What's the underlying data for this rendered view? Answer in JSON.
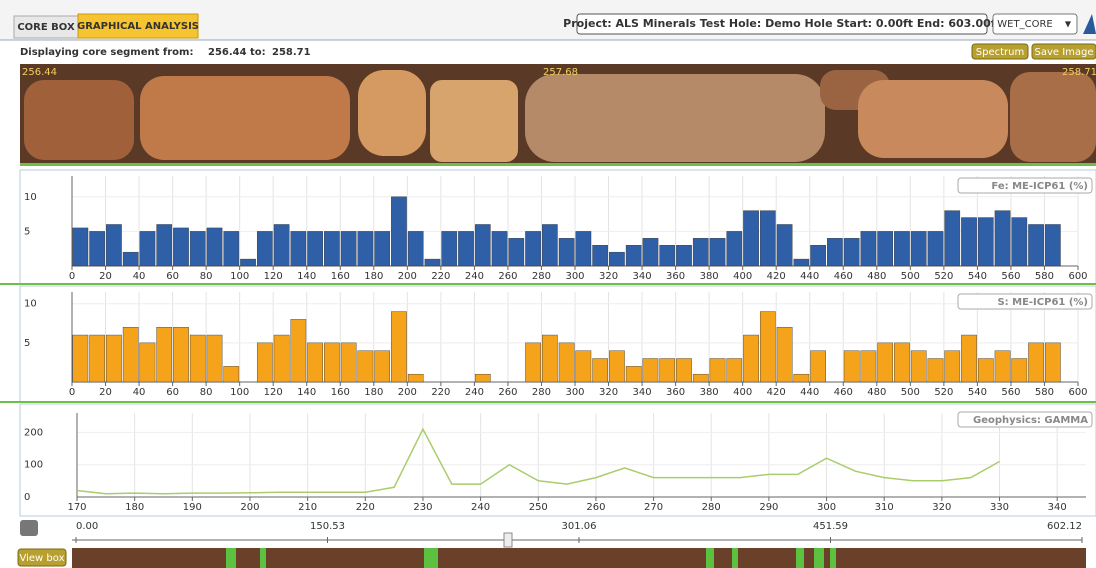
{
  "header": {
    "tabs": [
      "CORE BOX",
      "GRAPHICAL ANALYSIS"
    ],
    "project": "Project: ALS Minerals Test Hole: Demo Hole Start: 0.00ft End: 603.00ft",
    "dropdown": "WET_CORE"
  },
  "segment": {
    "label": "Displaying core segment from:",
    "from": "256.44",
    "to_label": "to:",
    "to": "258.71",
    "buttons": [
      "Spectrum",
      "Save Image"
    ],
    "core_marks": [
      "256.44",
      "257.68",
      "258.71"
    ]
  },
  "chart_data": [
    {
      "type": "bar",
      "title": "Fe: ME-ICP61 (%)",
      "color": "#2f5fa7",
      "grid": true,
      "x": [
        5,
        15,
        25,
        35,
        45,
        55,
        65,
        75,
        85,
        95,
        105,
        115,
        125,
        135,
        145,
        155,
        165,
        175,
        185,
        195,
        205,
        215,
        225,
        235,
        245,
        255,
        265,
        275,
        285,
        295,
        305,
        315,
        325,
        335,
        345,
        355,
        365,
        375,
        385,
        395,
        405,
        415,
        425,
        435,
        445,
        455,
        465,
        475,
        485,
        495,
        505,
        515,
        525,
        535,
        545,
        555,
        565,
        575,
        585
      ],
      "values": [
        5.5,
        5,
        6,
        2,
        5,
        6,
        5.5,
        5,
        5.5,
        5,
        1,
        5,
        6,
        5,
        5,
        5,
        5,
        5,
        5,
        10,
        5,
        1,
        5,
        5,
        6,
        5,
        4,
        5,
        6,
        4,
        5,
        3,
        2,
        3,
        4,
        3,
        3,
        4,
        4,
        5,
        8,
        8,
        6,
        1,
        3,
        4,
        4,
        5,
        5,
        5,
        5,
        5,
        8,
        7,
        7,
        8,
        7,
        6,
        6
      ],
      "xlim": [
        0,
        600
      ],
      "ylim": [
        0,
        13
      ],
      "xticks": [
        0,
        20,
        40,
        60,
        80,
        100,
        120,
        140,
        160,
        180,
        200,
        220,
        240,
        260,
        280,
        300,
        320,
        340,
        360,
        380,
        400,
        420,
        440,
        460,
        480,
        500,
        520,
        540,
        560,
        580,
        600
      ],
      "yticks": [
        5,
        10
      ]
    },
    {
      "type": "bar",
      "title": "S: ME-ICP61 (%)",
      "color": "#f5a31a",
      "grid": true,
      "x": [
        5,
        15,
        25,
        35,
        45,
        55,
        65,
        75,
        85,
        95,
        105,
        115,
        125,
        135,
        145,
        155,
        165,
        175,
        185,
        195,
        205,
        215,
        225,
        235,
        245,
        255,
        265,
        275,
        285,
        295,
        305,
        315,
        325,
        335,
        345,
        355,
        365,
        375,
        385,
        395,
        405,
        415,
        425,
        435,
        445,
        455,
        465,
        475,
        485,
        495,
        505,
        515,
        525,
        535,
        545,
        555,
        565,
        575,
        585
      ],
      "values": [
        6,
        6,
        6,
        7,
        5,
        7,
        7,
        6,
        6,
        2,
        0,
        5,
        6,
        8,
        5,
        5,
        5,
        4,
        4,
        9,
        1,
        0,
        0,
        0,
        1,
        0,
        0,
        5,
        6,
        5,
        4,
        3,
        4,
        2,
        3,
        3,
        3,
        1,
        3,
        3,
        6,
        9,
        7,
        1,
        4,
        0,
        4,
        4,
        5,
        5,
        4,
        3,
        4,
        6,
        3,
        4,
        3,
        5,
        5
      ],
      "xlim": [
        0,
        600
      ],
      "ylim": [
        0,
        11.5
      ],
      "xticks": [
        0,
        20,
        40,
        60,
        80,
        100,
        120,
        140,
        160,
        180,
        200,
        220,
        240,
        260,
        280,
        300,
        320,
        340,
        360,
        380,
        400,
        420,
        440,
        460,
        480,
        500,
        520,
        540,
        560,
        580,
        600
      ],
      "yticks": [
        5,
        10
      ]
    },
    {
      "type": "line",
      "title": "Geophysics: GAMMA",
      "color": "#a9cd6b",
      "grid": true,
      "x": [
        170,
        175,
        180,
        185,
        190,
        195,
        200,
        205,
        210,
        215,
        220,
        225,
        230,
        235,
        240,
        245,
        250,
        255,
        260,
        265,
        270,
        275,
        280,
        285,
        290,
        295,
        300,
        305,
        310,
        315,
        320,
        325,
        330
      ],
      "values": [
        20,
        10,
        12,
        10,
        12,
        12,
        13,
        15,
        15,
        15,
        15,
        30,
        210,
        40,
        40,
        100,
        50,
        40,
        60,
        90,
        60,
        60,
        60,
        60,
        70,
        70,
        120,
        80,
        60,
        50,
        50,
        60,
        110
      ],
      "xlim": [
        170,
        345
      ],
      "ylim": [
        0,
        260
      ],
      "xticks": [
        170,
        180,
        190,
        200,
        210,
        220,
        230,
        240,
        250,
        260,
        270,
        280,
        290,
        300,
        310,
        320,
        330,
        340
      ],
      "yticks": [
        0,
        100,
        200
      ]
    }
  ],
  "slider": {
    "button": "View box",
    "labels": [
      "0.00",
      "150.53",
      "301.06",
      "451.59",
      "602.12"
    ]
  }
}
